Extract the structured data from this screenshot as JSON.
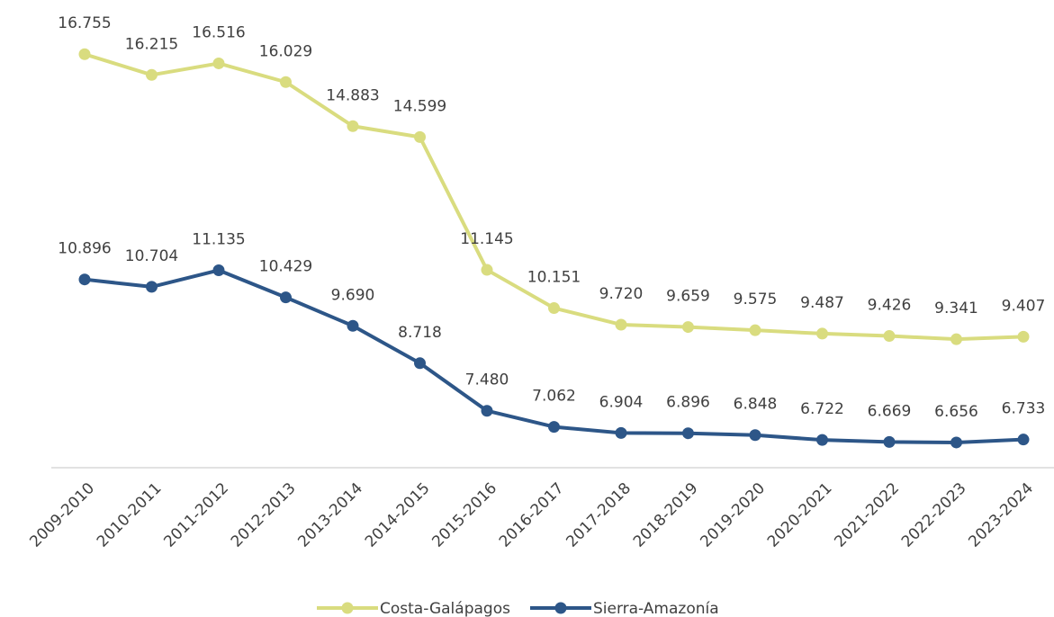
{
  "chart_data": {
    "type": "line",
    "categories": [
      "2009-2010",
      "2010-2011",
      "2011-2012",
      "2012-2013",
      "2013-2014",
      "2014-2015",
      "2015-2016",
      "2016-2017",
      "2017-2018",
      "2018-2019",
      "2019-2020",
      "2020-2021",
      "2021-2022",
      "2022-2023",
      "2023-2024"
    ],
    "series": [
      {
        "name": "Costa-Galápagos",
        "color": "#d9dc7f",
        "values": [
          16755,
          16215,
          16516,
          16029,
          14883,
          14599,
          11145,
          10151,
          9720,
          9659,
          9575,
          9487,
          9426,
          9341,
          9407
        ],
        "value_labels": [
          "16.755",
          "16.215",
          "16.516",
          "16.029",
          "14.883",
          "14.599",
          "11.145",
          "10.151",
          "9.720",
          "9.659",
          "9.575",
          "9.487",
          "9.426",
          "9.341",
          "9.407"
        ]
      },
      {
        "name": "Sierra-Amazonía",
        "color": "#2d5688",
        "values": [
          10896,
          10704,
          11135,
          10429,
          9690,
          8718,
          7480,
          7062,
          6904,
          6896,
          6848,
          6722,
          6669,
          6656,
          6733
        ],
        "value_labels": [
          "10.896",
          "10.704",
          "11.135",
          "10.429",
          "9.690",
          "8.718",
          "7.480",
          "7.062",
          "6.904",
          "6.896",
          "6.848",
          "6.722",
          "6.669",
          "6.656",
          "6.733"
        ]
      }
    ],
    "ylim": [
      6000,
      18000
    ],
    "legend": "bottom"
  }
}
